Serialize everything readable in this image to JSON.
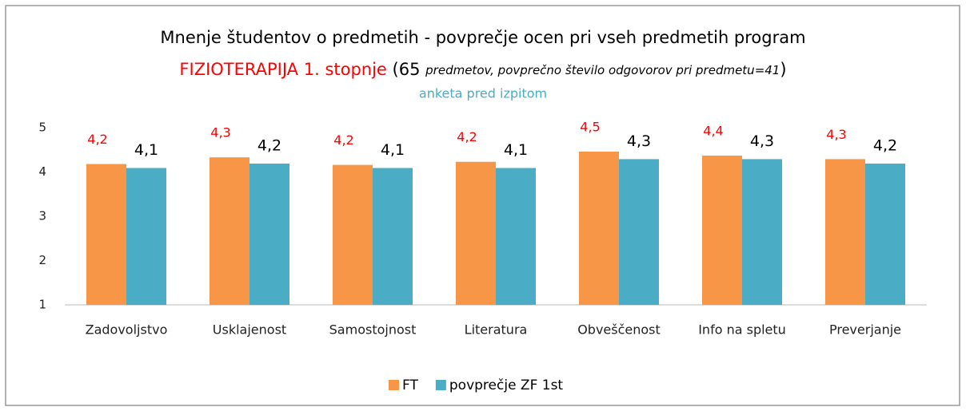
{
  "chart_data": {
    "type": "bar",
    "title": "Mnenje študentov o predmetih - povprečje ocen pri vseh predmetih program",
    "subtitle": [
      "FIZIOTERAPIJA 1. stopnje",
      "(65",
      "predmetov, povprečno število odgovorov pri predmetu=41",
      ")"
    ],
    "note": "anketa pred izpitom",
    "categories": [
      "Zadovoljstvo",
      "Usklajenost",
      "Samostojnost",
      "Literatura",
      "Obveščenost",
      "Info na spletu",
      "Preverjanje"
    ],
    "series": [
      {
        "name": "FT",
        "color": "#f79646",
        "label_color": "#ff0000",
        "values": [
          4.18,
          4.33,
          4.16,
          4.23,
          4.46,
          4.37,
          4.29
        ],
        "value_labels": [
          "4,2",
          "4,3",
          "4,2",
          "4,2",
          "4,5",
          "4,4",
          "4,3"
        ]
      },
      {
        "name": "povprečje ZF 1st",
        "color": "#4bacc6",
        "label_color": "#000000",
        "values": [
          4.09,
          4.19,
          4.09,
          4.09,
          4.29,
          4.29,
          4.19
        ],
        "value_labels": [
          "4,1",
          "4,2",
          "4,1",
          "4,1",
          "4,3",
          "4,3",
          "4,2"
        ]
      }
    ],
    "ylim": [
      1,
      5
    ],
    "yticks": [
      1,
      2,
      3,
      4,
      5
    ],
    "grid": false,
    "legend": "bottom"
  }
}
